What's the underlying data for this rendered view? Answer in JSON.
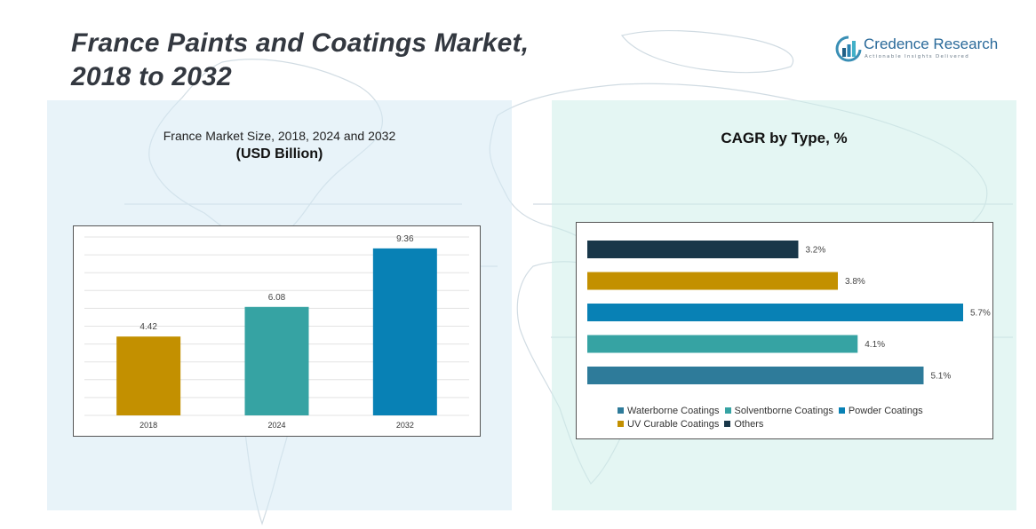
{
  "header": {
    "title_line1": "France Paints and Coatings Market,",
    "title_line2": "2018 to 2032"
  },
  "logo": {
    "name": "Credence Research",
    "tagline": "Actionable Insights Delivered"
  },
  "chart_data": [
    {
      "type": "bar",
      "title": "France Market Size, 2018, 2024 and 2032",
      "subtitle": "(USD Billion)",
      "categories": [
        "2018",
        "2024",
        "2032"
      ],
      "values": [
        4.42,
        6.08,
        9.36
      ],
      "colors": [
        "#c39000",
        "#36a3a3",
        "#0881b5"
      ],
      "ylim": [
        0,
        10
      ],
      "grid": true,
      "data_labels": true
    },
    {
      "type": "bar",
      "orientation": "horizontal",
      "title": "CAGR by Type, %",
      "categories": [
        "Others",
        "UV Curable Coatings",
        "Powder Coatings",
        "Solventborne Coatings",
        "Waterborne Coatings"
      ],
      "values": [
        3.2,
        3.8,
        5.7,
        4.1,
        5.1
      ],
      "value_labels": [
        "3.2%",
        "3.8%",
        "5.7%",
        "4.1%",
        "5.1%"
      ],
      "colors": [
        "#193749",
        "#c39000",
        "#0881b5",
        "#36a3a3",
        "#2e7b9a"
      ],
      "xlim": [
        0,
        5.7
      ],
      "legend": {
        "placement": "bottom",
        "items": [
          {
            "label": "Waterborne Coatings",
            "color": "#2e7b9a"
          },
          {
            "label": "Solventborne Coatings",
            "color": "#36a3a3"
          },
          {
            "label": "Powder Coatings",
            "color": "#0881b5"
          },
          {
            "label": "UV Curable Coatings",
            "color": "#c39000"
          },
          {
            "label": "Others",
            "color": "#193749"
          }
        ]
      }
    }
  ]
}
